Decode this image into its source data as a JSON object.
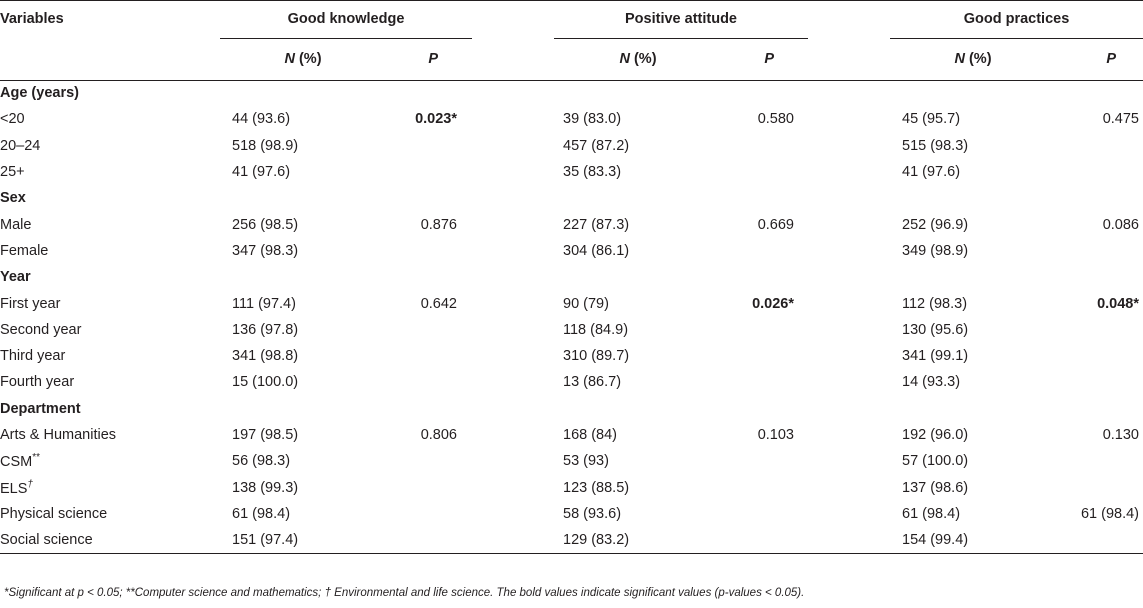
{
  "header": {
    "variables": "Variables",
    "groups": [
      "Good knowledge",
      "Positive attitude",
      "Good practices"
    ],
    "n_label": "N",
    "n_suffix": " (%)",
    "p_label": "P"
  },
  "rows": [
    {
      "type": "section",
      "label": "Age (years)"
    },
    {
      "type": "data",
      "label": "<20",
      "k_n": "44 (93.6)",
      "k_p": "0.023*",
      "k_p_bold": true,
      "a_n": "39 (83.0)",
      "a_p": "0.580",
      "a_p_bold": false,
      "p_n": "45 (95.7)",
      "p_p": "0.475",
      "p_p_bold": false
    },
    {
      "type": "data",
      "label": "20–24",
      "k_n": "518 (98.9)",
      "k_p": "",
      "a_n": "457 (87.2)",
      "a_p": "",
      "p_n": "515 (98.3)",
      "p_p": ""
    },
    {
      "type": "data",
      "label": "25+",
      "k_n": "41 (97.6)",
      "k_p": "",
      "a_n": "35 (83.3)",
      "a_p": "",
      "p_n": "41 (97.6)",
      "p_p": ""
    },
    {
      "type": "section",
      "label": "Sex"
    },
    {
      "type": "data",
      "label": "Male",
      "k_n": "256 (98.5)",
      "k_p": "0.876",
      "a_n": "227 (87.3)",
      "a_p": "0.669",
      "p_n": "252 (96.9)",
      "p_p": "0.086"
    },
    {
      "type": "data",
      "label": "Female",
      "k_n": "347 (98.3)",
      "k_p": "",
      "a_n": "304 (86.1)",
      "a_p": "",
      "p_n": "349 (98.9)",
      "p_p": ""
    },
    {
      "type": "section",
      "label": "Year"
    },
    {
      "type": "data",
      "label": "First year",
      "k_n": "111 (97.4)",
      "k_p": "0.642",
      "a_n": "90 (79)",
      "a_p": "0.026*",
      "a_p_bold": true,
      "p_n": "112 (98.3)",
      "p_p": "0.048*",
      "p_p_bold": true
    },
    {
      "type": "data",
      "label": "Second year",
      "k_n": "136 (97.8)",
      "k_p": "",
      "a_n": "118 (84.9)",
      "a_p": "",
      "p_n": "130 (95.6)",
      "p_p": ""
    },
    {
      "type": "data",
      "label": "Third year",
      "k_n": "341 (98.8)",
      "k_p": "",
      "a_n": "310 (89.7)",
      "a_p": "",
      "p_n": "341 (99.1)",
      "p_p": ""
    },
    {
      "type": "data",
      "label": "Fourth year",
      "k_n": "15 (100.0)",
      "k_p": "",
      "a_n": "13 (86.7)",
      "a_p": "",
      "p_n": "14 (93.3)",
      "p_p": ""
    },
    {
      "type": "section",
      "label": "Department"
    },
    {
      "type": "data",
      "label": "Arts & Humanities",
      "k_n": "197 (98.5)",
      "k_p": "0.806",
      "a_n": "168 (84)",
      "a_p": "0.103",
      "p_n": "192 (96.0)",
      "p_p": "0.130"
    },
    {
      "type": "data",
      "label": "CSM",
      "label_sup": "**",
      "k_n": "56 (98.3)",
      "k_p": "",
      "a_n": "53 (93)",
      "a_p": "",
      "p_n": "57 (100.0)",
      "p_p": ""
    },
    {
      "type": "data",
      "label": "ELS",
      "label_sup": "†",
      "k_n": "138 (99.3)",
      "k_p": "",
      "a_n": "123 (88.5)",
      "a_p": "",
      "p_n": "137 (98.6)",
      "p_p": ""
    },
    {
      "type": "data",
      "label": "Physical science",
      "k_n": "61 (98.4)",
      "k_p": "",
      "a_n": "58 (93.6)",
      "a_p": "",
      "p_n": "61 (98.4)",
      "p_p": "61 (98.4)"
    },
    {
      "type": "data",
      "label": "Social science",
      "k_n": "151 (97.4)",
      "k_p": "",
      "a_n": "129 (83.2)",
      "a_p": "",
      "p_n": "154 (99.4)",
      "p_p": ""
    }
  ],
  "footnote": "*Significant at p < 0.05; **Computer science and mathematics; † Environmental and life science. The bold values indicate significant values (p-values < 0.05)."
}
